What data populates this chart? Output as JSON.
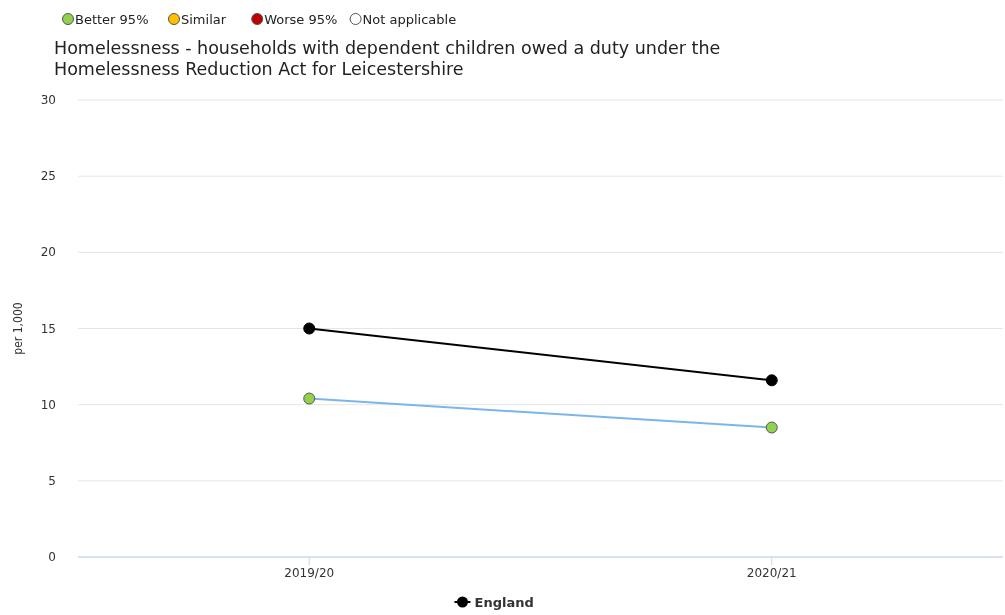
{
  "chart_data": {
    "type": "line",
    "title": "Homelessness - households with dependent children owed a duty under the Homelessness Reduction Act for Leicestershire",
    "ylabel": "per 1,000",
    "categories": [
      "2019/20",
      "2020/21"
    ],
    "annotations": [
      "Better 95%",
      "Similar",
      "Worse 95%",
      "Not applicable"
    ],
    "series": [
      {
        "color": "#7cb5ec",
        "colors": [
          "#92d050",
          "#92d050"
        ],
        "values": [
          10.4,
          8.5
        ]
      },
      {
        "name": "England",
        "color": "#000000",
        "values": [
          15.0,
          11.6
        ]
      }
    ],
    "ylim": [
      0,
      30
    ],
    "yticks": [
      0,
      5,
      10,
      15,
      20,
      25,
      30
    ],
    "grid": "y",
    "marker": "circle",
    "legend": "bottom"
  }
}
